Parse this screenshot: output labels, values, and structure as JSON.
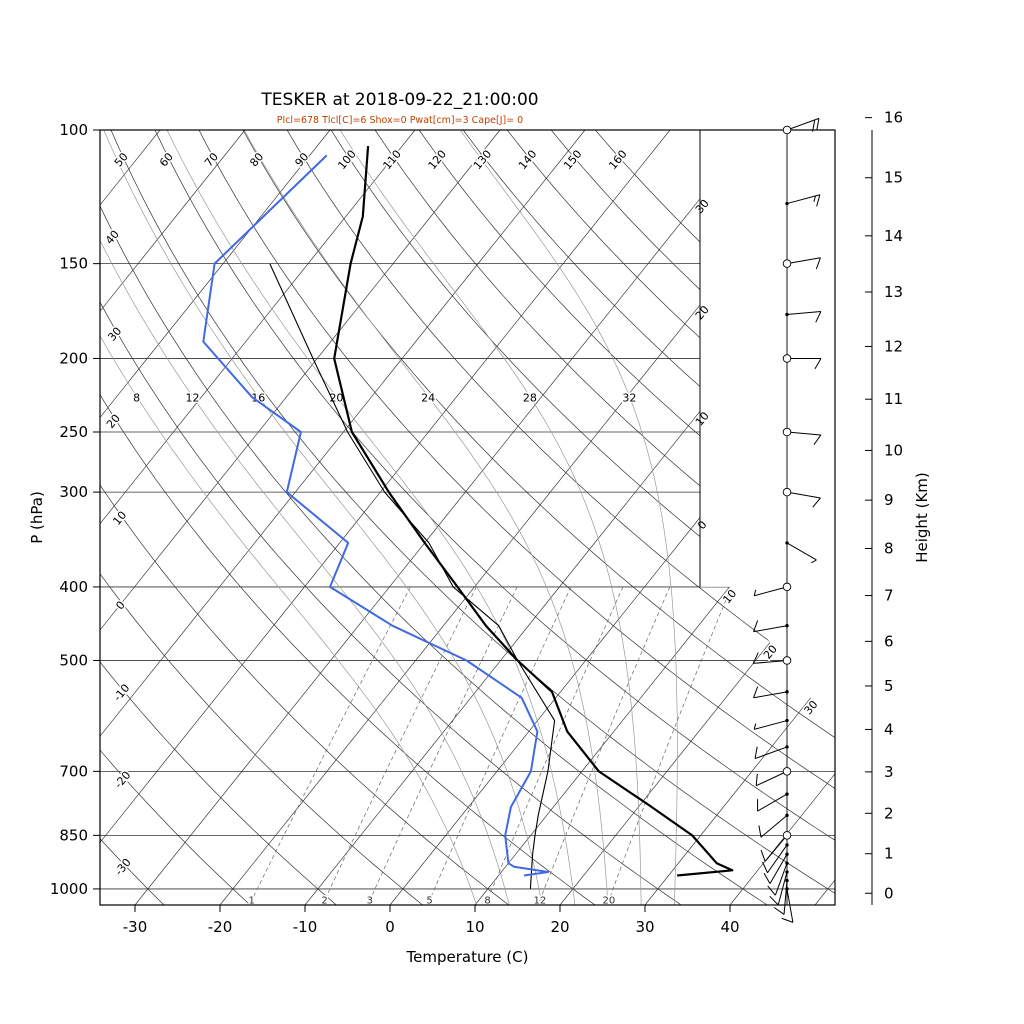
{
  "title": "TESKER at 2018-09-22_21:00:00",
  "subtitle": "Plcl=678 Tlcl[C]=6 Shox=0 Pwat[cm]=3 Cape[J]= 0",
  "subtitle_color": "#c04000",
  "axes": {
    "pressure_label": "P (hPa)",
    "temperature_label": "Temperature (C)",
    "height_label": "Height (Km)",
    "pressure_ticks": [
      100,
      150,
      200,
      250,
      300,
      400,
      500,
      700,
      850,
      1000
    ],
    "temperature_ticks": [
      -30,
      -20,
      -10,
      0,
      10,
      20,
      30,
      40
    ],
    "height_ticks": [
      0,
      1,
      2,
      3,
      4,
      5,
      6,
      7,
      8,
      9,
      10,
      11,
      12,
      13,
      14,
      15,
      16
    ]
  },
  "chart_data": {
    "type": "skewt-logp",
    "pressure_range_hpa": [
      100,
      1050
    ],
    "isotherm_step_c": 10,
    "dry_adiabats_c": [
      -30,
      -20,
      -10,
      0,
      10,
      20,
      30,
      40,
      50,
      60,
      70,
      80,
      90,
      100,
      110,
      120,
      130,
      140,
      150,
      160
    ],
    "moist_adiabats_c": [
      8,
      12,
      16,
      20,
      24,
      28,
      32
    ],
    "mixing_ratio_gkg": [
      1,
      2,
      3,
      5,
      8,
      12,
      20
    ],
    "isotherm_edge_labels": [
      30,
      20,
      10,
      0,
      10,
      20,
      30
    ],
    "temperature_profile": {
      "pressure_hpa": [
        960,
        945,
        925,
        850,
        775,
        700,
        620,
        550,
        500,
        450,
        400,
        350,
        300,
        250,
        200,
        150,
        130,
        105
      ],
      "temp_c": [
        31,
        37,
        34.5,
        29,
        21,
        12,
        4.5,
        -1,
        -8,
        -15,
        -22,
        -30,
        -39,
        -49,
        -58,
        -65,
        -68,
        -74
      ]
    },
    "dewpoint_profile": {
      "pressure_hpa": [
        960,
        950,
        935,
        925,
        850,
        780,
        700,
        620,
        560,
        500,
        450,
        400,
        350,
        300,
        250,
        225,
        190,
        150,
        108
      ],
      "temp_c": [
        13,
        15.5,
        11,
        10,
        7,
        5,
        4,
        1,
        -4,
        -14,
        -26,
        -37,
        -39,
        -51,
        -55,
        -64,
        -75,
        -81,
        -78
      ]
    },
    "parcel_profile": {
      "pressure_hpa": [
        1000,
        900,
        850,
        800,
        700,
        600,
        500,
        450,
        400,
        350,
        300,
        250,
        200,
        150
      ],
      "temp_c": [
        15,
        12,
        10.5,
        9,
        6,
        2,
        -8,
        -13.5,
        -22.5,
        -29.5,
        -39.5,
        -49.5,
        -60.5,
        -74.5
      ]
    },
    "wind_barbs": [
      {
        "p": 1000,
        "speed_kt": 10,
        "dir_deg": 170
      },
      {
        "p": 975,
        "speed_kt": 12,
        "dir_deg": 185
      },
      {
        "p": 950,
        "speed_kt": 10,
        "dir_deg": 195
      },
      {
        "p": 925,
        "speed_kt": 8,
        "dir_deg": 200
      },
      {
        "p": 900,
        "speed_kt": 10,
        "dir_deg": 210
      },
      {
        "p": 875,
        "speed_kt": 8,
        "dir_deg": 215
      },
      {
        "p": 850,
        "speed_kt": 10,
        "dir_deg": 220
      },
      {
        "p": 800,
        "speed_kt": 8,
        "dir_deg": 230
      },
      {
        "p": 750,
        "speed_kt": 10,
        "dir_deg": 240
      },
      {
        "p": 700,
        "speed_kt": 10,
        "dir_deg": 245
      },
      {
        "p": 650,
        "speed_kt": 8,
        "dir_deg": 250
      },
      {
        "p": 600,
        "speed_kt": 5,
        "dir_deg": 255
      },
      {
        "p": 550,
        "speed_kt": 8,
        "dir_deg": 260
      },
      {
        "p": 500,
        "speed_kt": 10,
        "dir_deg": 265
      },
      {
        "p": 450,
        "speed_kt": 8,
        "dir_deg": 260
      },
      {
        "p": 400,
        "speed_kt": 5,
        "dir_deg": 255
      },
      {
        "p": 350,
        "speed_kt": 5,
        "dir_deg": 120
      },
      {
        "p": 300,
        "speed_kt": 8,
        "dir_deg": 100
      },
      {
        "p": 250,
        "speed_kt": 10,
        "dir_deg": 95
      },
      {
        "p": 200,
        "speed_kt": 12,
        "dir_deg": 90
      },
      {
        "p": 175,
        "speed_kt": 10,
        "dir_deg": 85
      },
      {
        "p": 150,
        "speed_kt": 12,
        "dir_deg": 80
      },
      {
        "p": 125,
        "speed_kt": 15,
        "dir_deg": 75
      },
      {
        "p": 100,
        "speed_kt": 18,
        "dir_deg": 70
      }
    ],
    "station_circle_levels": [
      100,
      150,
      200,
      250,
      300,
      400,
      500,
      700,
      850
    ],
    "colors": {
      "temperature": "#000000",
      "dewpoint": "#4169e1",
      "parcel": "#000000",
      "grid": "#333333",
      "moist_adiabat": "#999999",
      "mixing_ratio": "#666666"
    }
  }
}
